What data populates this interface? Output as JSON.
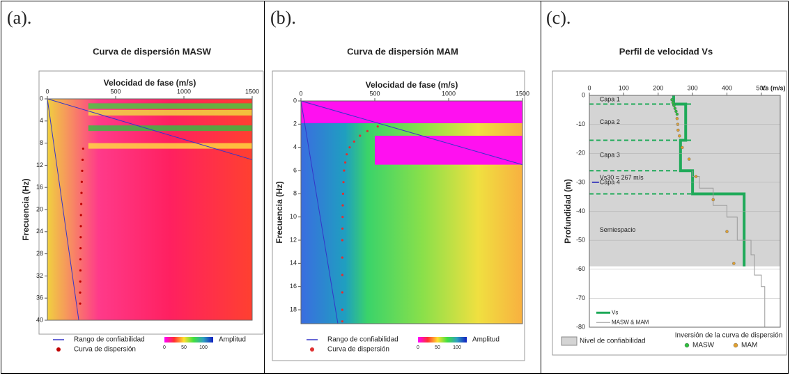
{
  "panel_labels": [
    "(a).",
    "(b).",
    "(c)."
  ],
  "chart_data": [
    {
      "type": "dispersion",
      "title": "Curva de dispersión MASW",
      "xlabel": "Velocidad de fase (m/s)",
      "ylabel": "Frecuencia (Hz)",
      "xlim": [
        0,
        1500
      ],
      "xticks": [
        0,
        500,
        1000,
        1500
      ],
      "ylim": [
        0,
        40
      ],
      "yticks": [
        0,
        4,
        8,
        12,
        16,
        20,
        24,
        28,
        32,
        36,
        40
      ],
      "series": [
        {
          "name": "Rango de confiabilidad",
          "color": "#3535c8",
          "kind": "line",
          "x": [
            1500,
            0,
            230
          ],
          "values": [
            11,
            0,
            40
          ]
        },
        {
          "name": "Curva de dispersión",
          "color": "#c00000",
          "kind": "points",
          "x": [
            262,
            258,
            255,
            252,
            250,
            248,
            246,
            245,
            244,
            243,
            242,
            242,
            241,
            240,
            240
          ],
          "values": [
            9,
            11,
            13,
            15,
            17,
            19,
            21,
            23,
            25,
            27,
            29,
            31,
            33,
            35,
            37
          ]
        }
      ],
      "colorbar": {
        "label": "Amplitud",
        "lim": [
          0,
          125
        ],
        "ticks": [
          0,
          50,
          100
        ]
      }
    },
    {
      "type": "dispersion",
      "title": "Curva de dispersión MAM",
      "xlabel": "Velocidad de fase (m/s)",
      "ylabel": "Frecuencia (Hz)",
      "xlim": [
        0,
        1500
      ],
      "xticks": [
        0,
        500,
        1000,
        1500
      ],
      "ylim": [
        0,
        19.2
      ],
      "yticks": [
        0,
        2,
        4,
        6,
        8,
        10,
        12,
        14,
        16,
        18
      ],
      "series": [
        {
          "name": "Rango de confiabilidad",
          "color": "#3535c8",
          "kind": "line",
          "x": [
            1500,
            0,
            250
          ],
          "values": [
            5.5,
            0,
            19.2
          ]
        },
        {
          "name": "Curva de dispersión",
          "color": "#e03030",
          "kind": "points",
          "x": [
            520,
            450,
            400,
            360,
            330,
            310,
            300,
            292,
            288,
            285,
            283,
            282,
            281,
            280,
            280,
            280,
            280,
            280,
            280
          ],
          "values": [
            2.2,
            2.6,
            3.0,
            3.5,
            4.0,
            4.6,
            5.3,
            6.0,
            7.0,
            8.0,
            9.0,
            10.0,
            11.0,
            12.0,
            13.5,
            15.0,
            16.5,
            18.0,
            19.0
          ]
        }
      ],
      "colorbar": {
        "label": "Amplitud",
        "lim": [
          0,
          125
        ],
        "ticks": [
          0,
          50,
          100
        ]
      }
    },
    {
      "type": "profile",
      "title": "Perfil de velocidad Vs",
      "xlabel": "Vs (m/s)",
      "ylabel": "Profundidad (m)",
      "xlim": [
        0,
        555
      ],
      "xticks": [
        0,
        100,
        200,
        300,
        400,
        500
      ],
      "ylim": [
        -80,
        0
      ],
      "yticks": [
        0,
        -10,
        -20,
        -30,
        -40,
        -50,
        -60,
        -70,
        -80
      ],
      "confidence_depth": -59,
      "confidence_label": "Nivel de confiabilidad",
      "layers": [
        {
          "label": "Capa 1",
          "bottom": -3
        },
        {
          "label": "Capa 2",
          "bottom": -15.5
        },
        {
          "label": "Capa 3",
          "bottom": -26
        },
        {
          "label": "Capa 4",
          "bottom": -34
        }
      ],
      "halfspace": "Semiespacio",
      "vs30": "Vs30 = 267 m/s",
      "legend_title": "Inversión de la curva de dispersión",
      "series": [
        {
          "name": "Vs",
          "color": "#1faa59",
          "kind": "step",
          "x": [
            245,
            245,
            280,
            280,
            265,
            265,
            300,
            300,
            450,
            450
          ],
          "values": [
            0,
            -3,
            -3,
            -15.5,
            -15.5,
            -26,
            -26,
            -34,
            -34,
            -59
          ]
        },
        {
          "name": "MASW & MAM",
          "color": "#999999",
          "kind": "thin",
          "x": [
            300,
            300,
            320,
            320,
            360,
            360,
            400,
            400,
            430,
            430,
            470,
            470,
            480,
            480,
            500,
            500,
            510,
            510
          ],
          "values": [
            -26,
            -28,
            -28,
            -32,
            -32,
            -38,
            -38,
            -42,
            -42,
            -50,
            -50,
            -55,
            -55,
            -62,
            -62,
            -66,
            -66,
            -80
          ]
        },
        {
          "name": "MASW",
          "color": "#2fbf3f",
          "kind": "points",
          "x": [
            240,
            243,
            246,
            249,
            252,
            255
          ],
          "values": [
            -1.5,
            -2.5,
            -3.5,
            -4.5,
            -5.5,
            -6.5
          ]
        },
        {
          "name": "MAM",
          "color": "#e0a030",
          "kind": "points",
          "x": [
            255,
            257,
            258,
            262,
            270,
            290,
            310,
            360,
            400,
            420
          ],
          "values": [
            -8,
            -10,
            -12,
            -14,
            -18,
            -22,
            -28,
            -36,
            -47,
            -58
          ]
        }
      ]
    }
  ]
}
